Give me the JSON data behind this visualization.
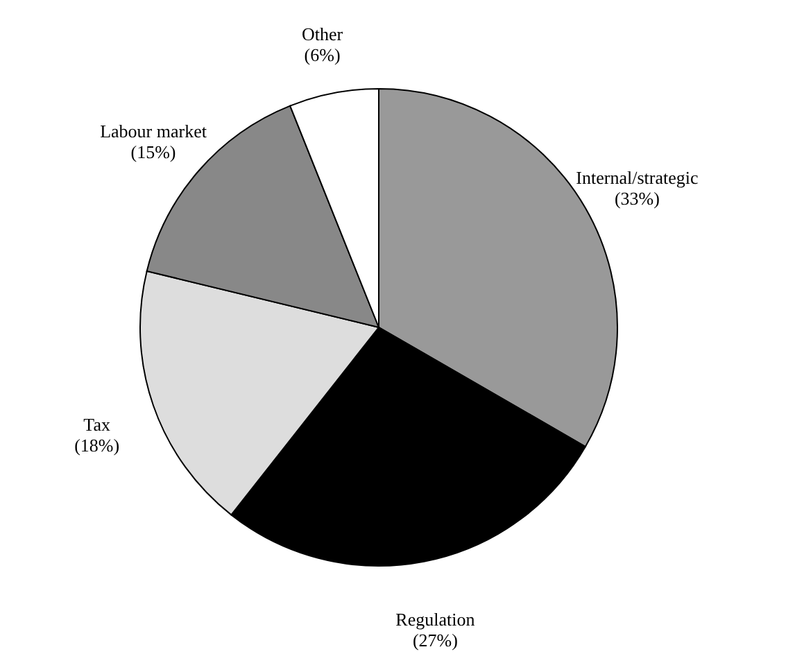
{
  "chart_data": {
    "type": "pie",
    "categories": [
      "Internal/strategic",
      "Regulation",
      "Tax",
      "Labour market",
      "Other"
    ],
    "values": [
      33,
      27,
      18,
      15,
      6
    ],
    "value_labels": [
      "(33%)",
      "(27%)",
      "(18%)",
      "(15%)",
      "(6%)"
    ],
    "colors": [
      "#999999",
      "#000000",
      "#dddddd",
      "#888888",
      "#ffffff"
    ]
  }
}
